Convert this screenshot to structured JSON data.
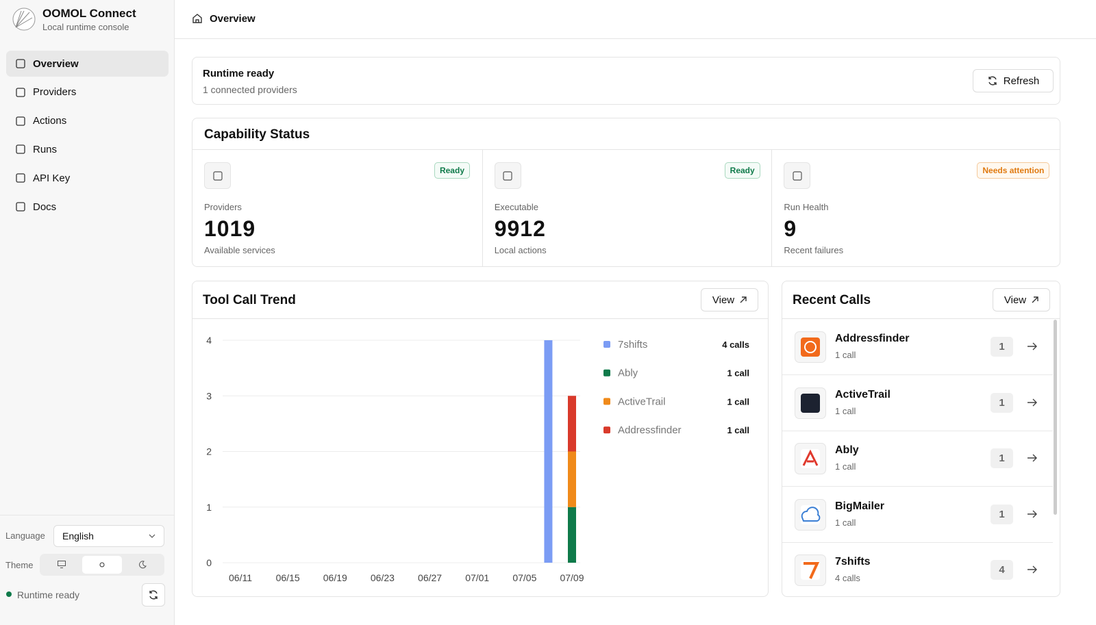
{
  "sidebar": {
    "brand": "OOMOL Connect",
    "tagline": "Local runtime console",
    "nav": [
      "Overview",
      "Providers",
      "Actions",
      "Runs",
      "API Key",
      "Docs"
    ],
    "language_label": "Language",
    "language": "English",
    "theme_label": "Theme",
    "status": "Runtime ready"
  },
  "header": {
    "title": "Overview"
  },
  "runtime": {
    "title": "Runtime ready",
    "subtitle": "1 connected providers",
    "button": "Refresh"
  },
  "capability": {
    "title": "Capability Status",
    "cards": [
      {
        "badge": "Ready",
        "label": "Providers",
        "value": 1019,
        "caption": "Available services"
      },
      {
        "badge": "Ready",
        "label": "Executable",
        "value": 9912,
        "caption": "Local actions"
      },
      {
        "badge": "Needs attention",
        "label": "Run Health",
        "value": 9,
        "caption": "Recent failures"
      }
    ]
  },
  "trend": {
    "title": "Tool Call Trend",
    "button": "View"
  },
  "chart_data": {
    "type": "bar",
    "stacked": true,
    "categories": [
      "06/11",
      null,
      null,
      null,
      "06/15",
      null,
      null,
      null,
      "06/19",
      null,
      null,
      null,
      "06/23",
      null,
      null,
      null,
      "06/27",
      null,
      null,
      null,
      "07/01",
      null,
      null,
      null,
      "07/05",
      null,
      null,
      null,
      "07/09"
    ],
    "series": [
      {
        "name": "7shifts",
        "color": "#7b9cf4",
        "values": [
          0,
          0,
          0,
          0,
          0,
          0,
          0,
          0,
          0,
          0,
          0,
          0,
          0,
          0,
          0,
          0,
          0,
          0,
          0,
          0,
          0,
          0,
          0,
          0,
          0,
          0,
          4,
          0,
          0
        ]
      },
      {
        "name": "Ably",
        "color": "#0f7a4a",
        "values": [
          0,
          0,
          0,
          0,
          0,
          0,
          0,
          0,
          0,
          0,
          0,
          0,
          0,
          0,
          0,
          0,
          0,
          0,
          0,
          0,
          0,
          0,
          0,
          0,
          0,
          0,
          0,
          0,
          1
        ]
      },
      {
        "name": "ActiveTrail",
        "color": "#f08a1a",
        "values": [
          0,
          0,
          0,
          0,
          0,
          0,
          0,
          0,
          0,
          0,
          0,
          0,
          0,
          0,
          0,
          0,
          0,
          0,
          0,
          0,
          0,
          0,
          0,
          0,
          0,
          0,
          0,
          0,
          1
        ]
      },
      {
        "name": "Addressfinder",
        "color": "#d93a2b",
        "values": [
          0,
          0,
          0,
          0,
          0,
          0,
          0,
          0,
          0,
          0,
          0,
          0,
          0,
          0,
          0,
          0,
          0,
          0,
          0,
          0,
          0,
          0,
          0,
          0,
          0,
          0,
          0,
          0,
          1
        ]
      }
    ],
    "legend_labels": [
      "4 calls",
      "1 call",
      "1 call",
      "1 call"
    ],
    "ylim": [
      0,
      4
    ],
    "yticks": [
      0,
      1,
      2,
      3,
      4
    ],
    "grid": true
  },
  "recent": {
    "title": "Recent Calls",
    "button": "View",
    "items": [
      {
        "name": "Addressfinder",
        "sub": "1 call",
        "count": 1
      },
      {
        "name": "ActiveTrail",
        "sub": "1 call",
        "count": 1
      },
      {
        "name": "Ably",
        "sub": "1 call",
        "count": 1
      },
      {
        "name": "BigMailer",
        "sub": "1 call",
        "count": 1
      },
      {
        "name": "7shifts",
        "sub": "4 calls",
        "count": 4
      }
    ]
  }
}
